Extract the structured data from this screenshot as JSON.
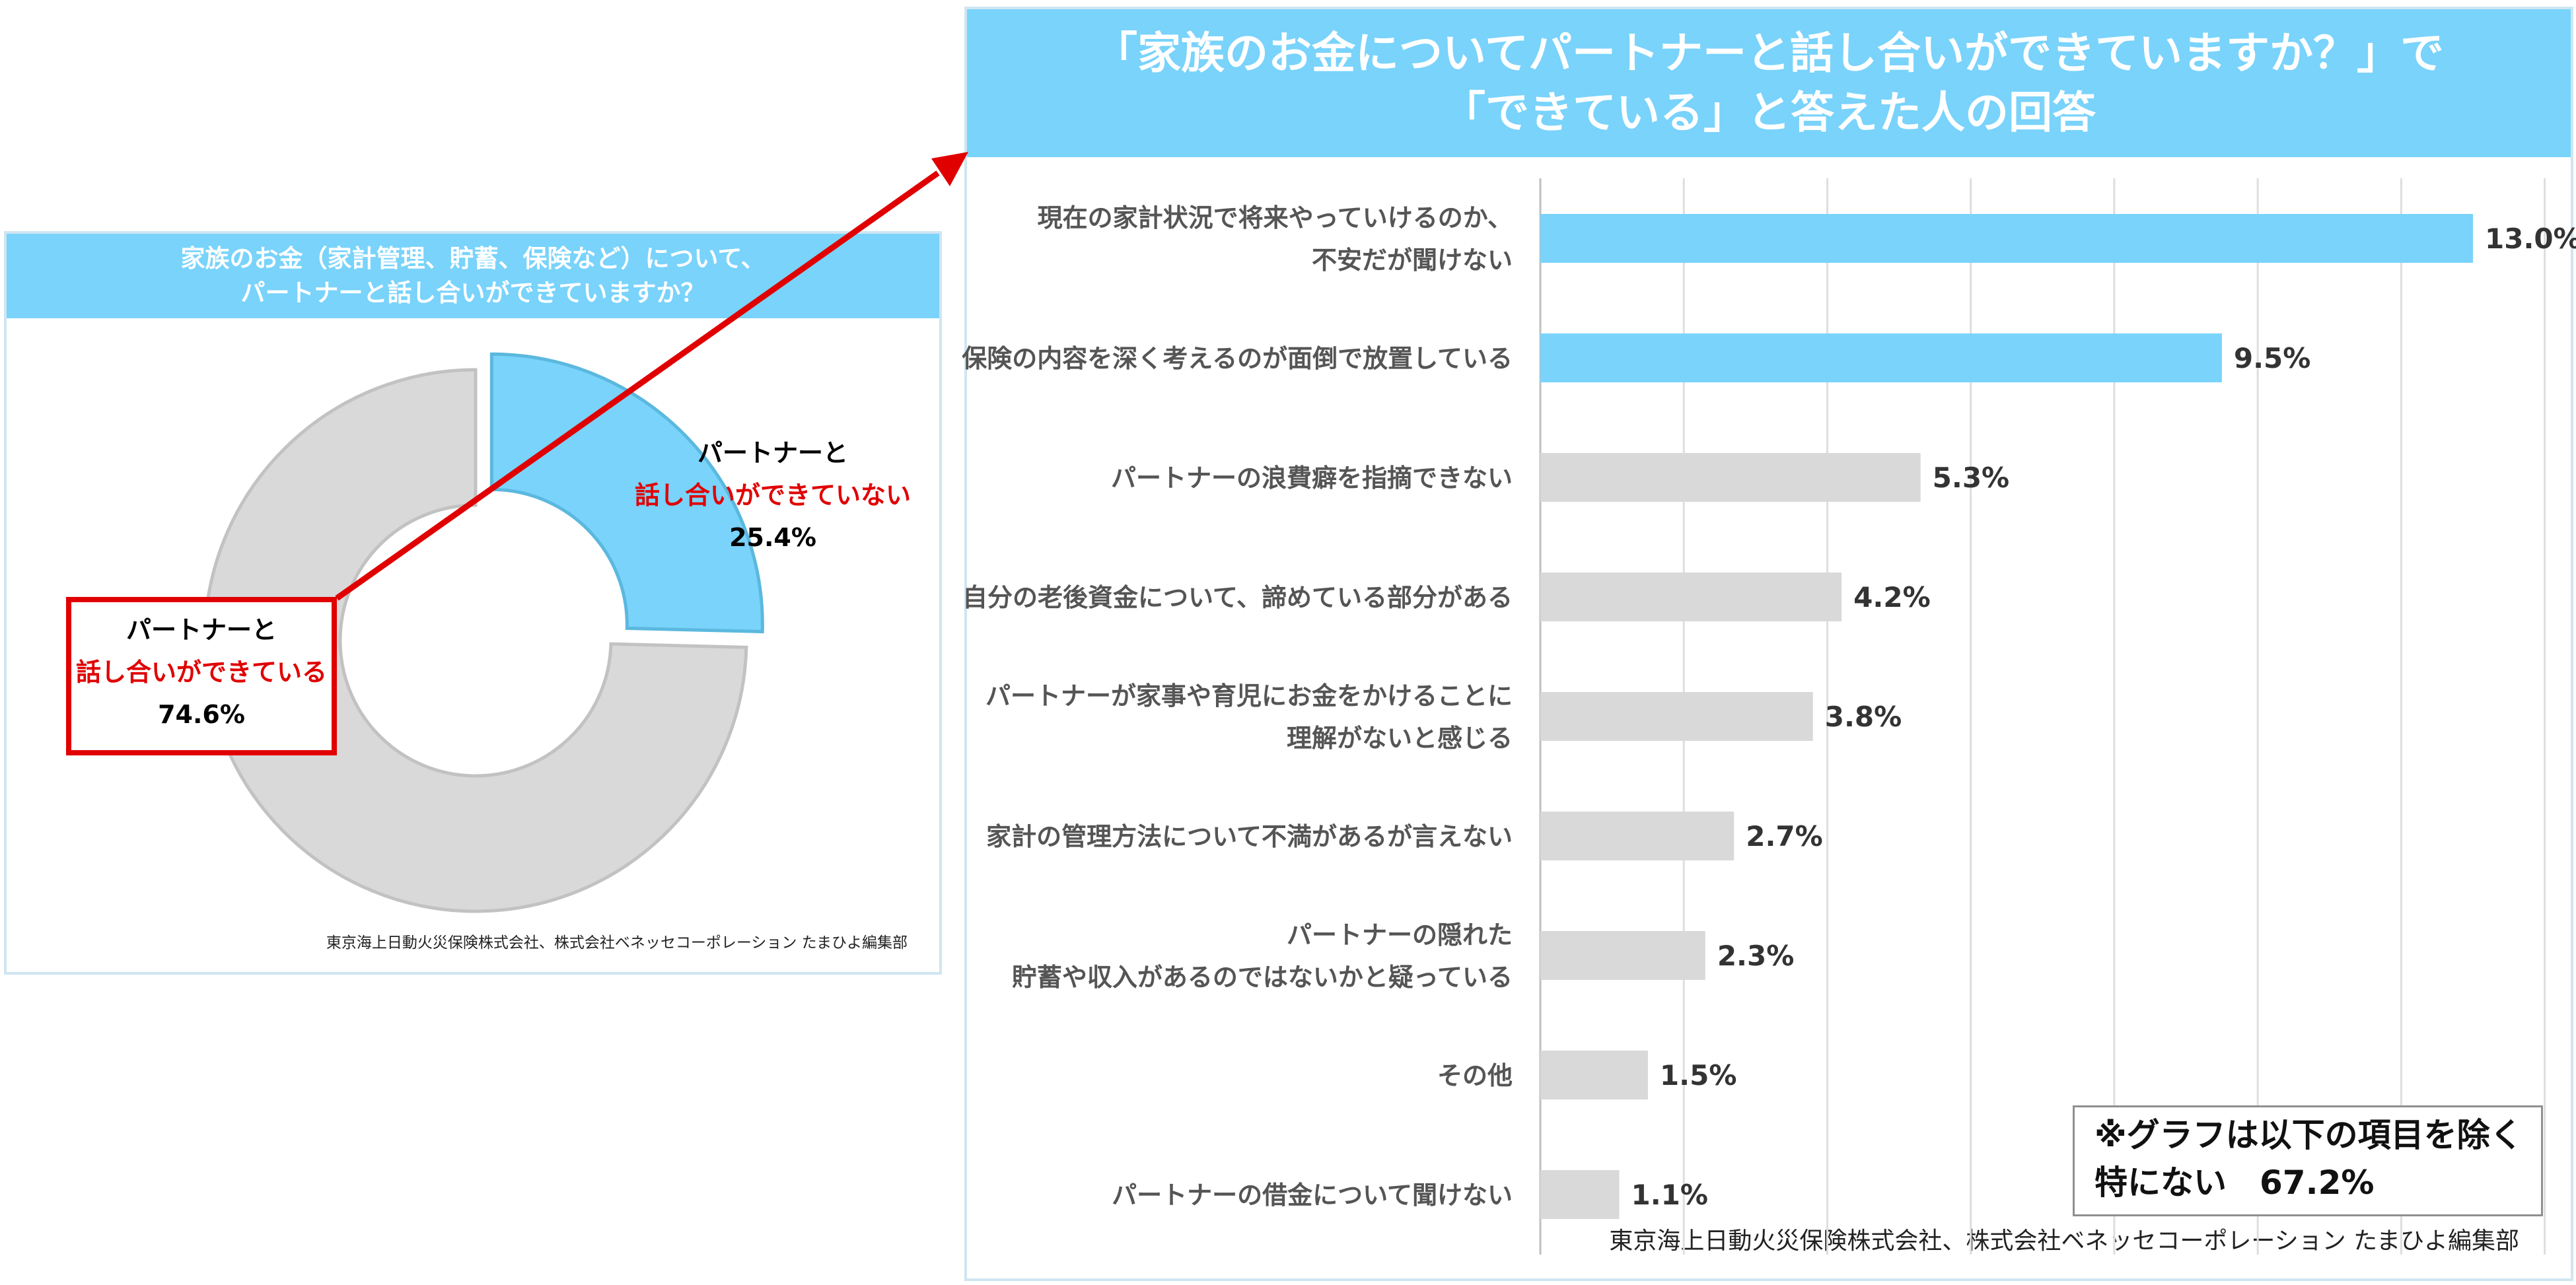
{
  "left_panel": {
    "title_line1": "家族のお金（家計管理、貯蓄、保険など）について、",
    "title_line2": "パートナーと話し合いができていますか？",
    "source": "東京海上日動火災保険株式会社、株式会社ベネッセコーポレーション たまひよ編集部"
  },
  "right_panel": {
    "title_line1": "「家族のお金についてパートナーと話し合いができていますか？」で",
    "title_line2": "「できている」と答えた人の回答",
    "source": "東京海上日動火災保険株式会社、株式会社ベネッセコーポレーション たまひよ編集部",
    "note_line1": "※グラフは以下の項目を除く",
    "note_line2": "特にない　67.2%"
  },
  "donut": {
    "no": {
      "line1": "パートナーと",
      "line2": "話し合いができていない",
      "value_label": "25.4%"
    },
    "yes": {
      "line1": "パートナーと",
      "line2": "話し合いができている",
      "value_label": "74.6%"
    }
  },
  "colors": {
    "accent": "#79d3fb",
    "gray": "#d9d9d9",
    "red": "#e00000"
  },
  "chart_data": [
    {
      "type": "pie",
      "title": "家族のお金（家計管理、貯蓄、保険など）について、パートナーと話し合いができていますか？",
      "categories": [
        "パートナーと話し合いができていない",
        "パートナーと話し合いができている"
      ],
      "values": [
        25.4,
        74.6
      ],
      "colors": [
        "#79d3fb",
        "#d9d9d9"
      ]
    },
    {
      "type": "bar",
      "orientation": "horizontal",
      "title": "「家族のお金についてパートナーと話し合いができていますか？」で「できている」と答えた人の回答",
      "categories": [
        [
          "現在の家計状況で将来やっていけるのか、",
          "不安だが聞けない"
        ],
        [
          "保険の内容を深く考えるのが面倒で放置している"
        ],
        [
          "パートナーの浪費癖を指摘できない"
        ],
        [
          "自分の老後資金について、諦めている部分がある"
        ],
        [
          "パートナーが家事や育児にお金をかけることに",
          "理解がないと感じる"
        ],
        [
          "家計の管理方法について不満があるが言えない"
        ],
        [
          "パートナーの隠れた",
          "貯蓄や収入があるのではないかと疑っている"
        ],
        [
          "その他"
        ],
        [
          "パートナーの借金について聞けない"
        ]
      ],
      "values": [
        13.0,
        9.5,
        5.3,
        4.2,
        3.8,
        2.7,
        2.3,
        1.5,
        1.1
      ],
      "value_labels": [
        "13.0%",
        "9.5%",
        "5.3%",
        "4.2%",
        "3.8%",
        "2.7%",
        "2.3%",
        "1.5%",
        "1.1%"
      ],
      "highlight_count": 2,
      "xlim": [
        0,
        14
      ],
      "grid": true
    }
  ]
}
